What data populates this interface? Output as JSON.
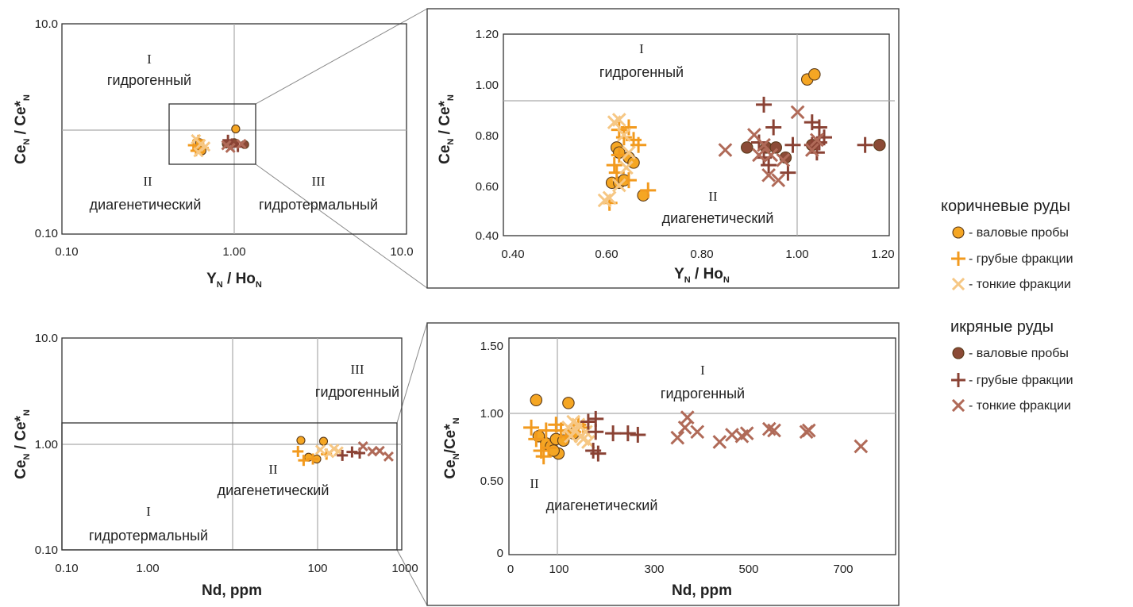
{
  "colors": {
    "brown_bulk": "#f5a623",
    "brown_coarse": "#f29a1e",
    "brown_fine": "#f6c784",
    "ikra_bulk": "#8b4a36",
    "ikra_coarse": "#8a4234",
    "ikra_fine": "#b06a58"
  },
  "legend": {
    "group1": "коричневые руды",
    "group2": "икряные руды",
    "items1": [
      "- валовые пробы",
      "- грубые фракции",
      "- тонкие фракции"
    ],
    "items2": [
      "- валовые пробы",
      "- грубые фракции",
      "- тонкие фракции"
    ]
  },
  "chart_data": [
    {
      "type": "scatter",
      "log_x": true,
      "log_y": true,
      "xlim": [
        0.1,
        10
      ],
      "ylim": [
        0.1,
        10
      ],
      "xticks": [
        "0.10",
        "1.00",
        "10.0"
      ],
      "yticks": [
        "0.10",
        "10.0"
      ],
      "xlabel": "YN / HoN",
      "ylabel": "CeN / Ce*N",
      "divider_x": 1.0,
      "divider_y": 0.93,
      "zoom_box": {
        "x": [
          0.42,
          1.35
        ],
        "y": [
          0.47,
          1.4
        ]
      },
      "zones": [
        {
          "numeral": "I",
          "label": "гидрогенный"
        },
        {
          "numeral": "II",
          "label": "диагенетический"
        },
        {
          "numeral": "III",
          "label": "гидротермальный"
        }
      ],
      "series": [
        {
          "kind": "brown_bulk",
          "points": [
            [
              0.63,
              0.74
            ],
            [
              0.64,
              0.67
            ],
            [
              0.65,
              0.62
            ],
            [
              1.02,
              1.0
            ]
          ]
        },
        {
          "kind": "brown_coarse",
          "points": [
            [
              0.58,
              0.7
            ],
            [
              0.62,
              0.78
            ],
            [
              0.66,
              0.66
            ],
            [
              0.6,
              0.62
            ]
          ]
        },
        {
          "kind": "brown_fine",
          "points": [
            [
              0.6,
              0.8
            ],
            [
              0.64,
              0.72
            ],
            [
              0.68,
              0.68
            ],
            [
              0.62,
              0.6
            ]
          ]
        },
        {
          "kind": "ikra_bulk",
          "points": [
            [
              0.9,
              0.72
            ],
            [
              1.0,
              0.74
            ],
            [
              1.15,
              0.71
            ]
          ]
        },
        {
          "kind": "ikra_coarse",
          "points": [
            [
              0.92,
              0.78
            ],
            [
              0.97,
              0.72
            ],
            [
              1.05,
              0.68
            ]
          ]
        },
        {
          "kind": "ikra_fine",
          "points": [
            [
              0.9,
              0.7
            ],
            [
              0.95,
              0.66
            ],
            [
              1.1,
              0.72
            ]
          ]
        }
      ]
    },
    {
      "type": "scatter",
      "xlim": [
        0.4,
        1.2
      ],
      "ylim": [
        0.4,
        1.2
      ],
      "xticks": [
        "0.40",
        "0.60",
        "0.80",
        "1.00",
        "1.20"
      ],
      "yticks": [
        "0.40",
        "0.60",
        "0.80",
        "1.00",
        "1.20"
      ],
      "xlabel": "YN / HoN",
      "ylabel": "CeN / Ce*N",
      "divider_x": 1.0,
      "divider_y": 0.93,
      "zones": [
        {
          "numeral": "I",
          "label": "гидрогенный"
        },
        {
          "numeral": "II",
          "label": "диагенетический"
        }
      ],
      "series": [
        {
          "kind": "brown_bulk",
          "points": [
            [
              0.635,
              0.75
            ],
            [
              0.625,
              0.61
            ],
            [
              0.64,
              0.61
            ],
            [
              0.65,
              0.62
            ],
            [
              0.66,
              0.71
            ],
            [
              0.67,
              0.69
            ],
            [
              0.69,
              0.56
            ],
            [
              0.64,
              0.73
            ],
            [
              1.03,
              1.02
            ],
            [
              1.045,
              1.04
            ]
          ]
        },
        {
          "kind": "brown_coarse",
          "points": [
            [
              0.63,
              0.68
            ],
            [
              0.64,
              0.72
            ],
            [
              0.65,
              0.79
            ],
            [
              0.66,
              0.83
            ],
            [
              0.67,
              0.78
            ],
            [
              0.68,
              0.76
            ],
            [
              0.66,
              0.62
            ],
            [
              0.7,
              0.58
            ],
            [
              0.62,
              0.53
            ],
            [
              0.635,
              0.65
            ],
            [
              0.64,
              0.82
            ]
          ]
        },
        {
          "kind": "brown_fine",
          "points": [
            [
              0.63,
              0.85
            ],
            [
              0.64,
              0.86
            ],
            [
              0.65,
              0.8
            ],
            [
              0.66,
              0.73
            ],
            [
              0.62,
              0.55
            ],
            [
              0.61,
              0.54
            ],
            [
              0.64,
              0.6
            ],
            [
              0.655,
              0.67
            ]
          ]
        },
        {
          "kind": "ikra_bulk",
          "points": [
            [
              0.905,
              0.75
            ],
            [
              0.945,
              0.75
            ],
            [
              0.965,
              0.75
            ],
            [
              0.985,
              0.71
            ],
            [
              1.04,
              0.76
            ],
            [
              1.18,
              0.76
            ]
          ]
        },
        {
          "kind": "ikra_coarse",
          "points": [
            [
              0.94,
              0.92
            ],
            [
              0.96,
              0.83
            ],
            [
              0.93,
              0.77
            ],
            [
              0.95,
              0.68
            ],
            [
              0.99,
              0.65
            ],
            [
              1.0,
              0.76
            ],
            [
              1.04,
              0.85
            ],
            [
              1.055,
              0.83
            ],
            [
              1.065,
              0.79
            ],
            [
              1.05,
              0.73
            ],
            [
              1.04,
              0.76
            ],
            [
              1.15,
              0.76
            ],
            [
              0.94,
              0.71
            ],
            [
              1.055,
              0.77
            ]
          ]
        },
        {
          "kind": "ikra_fine",
          "points": [
            [
              0.86,
              0.74
            ],
            [
              0.92,
              0.8
            ],
            [
              0.94,
              0.76
            ],
            [
              0.93,
              0.72
            ],
            [
              0.955,
              0.72
            ],
            [
              0.97,
              0.62
            ],
            [
              0.98,
              0.7
            ],
            [
              1.01,
              0.89
            ],
            [
              1.04,
              0.74
            ],
            [
              1.05,
              0.78
            ],
            [
              0.95,
              0.64
            ]
          ]
        }
      ]
    },
    {
      "type": "scatter",
      "log_x": true,
      "log_y": true,
      "xlim": [
        0.1,
        1000
      ],
      "ylim": [
        0.1,
        10
      ],
      "xticks": [
        "0.10",
        "1.00",
        "100",
        "1000"
      ],
      "yticks": [
        "0.10",
        "1.00",
        "10.0"
      ],
      "xlabel": "Nd, ppm",
      "ylabel": "CeN / Ce*N",
      "divider_x": [
        10,
        100
      ],
      "divider_y": 1.0,
      "zoom_box": {
        "x": [
          0.1,
          800
        ],
        "y": [
          0.1,
          1.6
        ]
      },
      "zones": [
        {
          "numeral": "III",
          "label": "гидрогенный"
        },
        {
          "numeral": "II",
          "label": "диагенетический"
        },
        {
          "numeral": "I",
          "label": "гидротермальный"
        }
      ],
      "series": [
        {
          "kind": "brown_bulk",
          "points": [
            [
              65,
              1.08
            ],
            [
              120,
              1.06
            ],
            [
              80,
              0.75
            ],
            [
              100,
              0.72
            ]
          ]
        },
        {
          "kind": "brown_coarse",
          "points": [
            [
              60,
              0.85
            ],
            [
              90,
              0.72
            ],
            [
              70,
              0.7
            ],
            [
              130,
              0.8
            ]
          ]
        },
        {
          "kind": "brown_fine",
          "points": [
            [
              110,
              0.88
            ],
            [
              140,
              0.82
            ],
            [
              160,
              0.9
            ],
            [
              180,
              0.85
            ]
          ]
        },
        {
          "kind": "ikra_coarse",
          "points": [
            [
              200,
              0.78
            ],
            [
              260,
              0.84
            ],
            [
              320,
              0.82
            ]
          ]
        },
        {
          "kind": "ikra_fine",
          "points": [
            [
              350,
              0.95
            ],
            [
              450,
              0.85
            ],
            [
              550,
              0.86
            ],
            [
              700,
              0.76
            ]
          ]
        }
      ]
    },
    {
      "type": "scatter",
      "xlim": [
        0,
        780
      ],
      "ylim": [
        0,
        1.5
      ],
      "xticks": [
        "0",
        "100",
        "300",
        "500",
        "700"
      ],
      "yticks": [
        "0",
        "0.50",
        "1.00",
        "1.50"
      ],
      "xlabel": "Nd, ppm",
      "ylabel": "CeN/Ce*N",
      "divider_x": 100,
      "divider_y": 1.0,
      "zones": [
        {
          "numeral": "I",
          "label": "гидрогенный"
        },
        {
          "numeral": "II",
          "label": "диагенетический"
        }
      ],
      "series": [
        {
          "kind": "brown_bulk",
          "points": [
            [
              55,
              1.07
            ],
            [
              120,
              1.05
            ],
            [
              60,
              0.82
            ],
            [
              75,
              0.77
            ],
            [
              85,
              0.75
            ],
            [
              95,
              0.8
            ],
            [
              100,
              0.7
            ],
            [
              110,
              0.79
            ],
            [
              130,
              0.84
            ],
            [
              90,
              0.72
            ]
          ]
        },
        {
          "kind": "brown_coarse",
          "points": [
            [
              45,
              0.88
            ],
            [
              55,
              0.8
            ],
            [
              65,
              0.72
            ],
            [
              70,
              0.68
            ],
            [
              80,
              0.74
            ],
            [
              95,
              0.9
            ],
            [
              105,
              0.86
            ],
            [
              115,
              0.82
            ],
            [
              130,
              0.85
            ],
            [
              140,
              0.9
            ],
            [
              150,
              0.88
            ],
            [
              75,
              0.86
            ]
          ]
        },
        {
          "kind": "brown_fine",
          "points": [
            [
              120,
              0.88
            ],
            [
              130,
              0.92
            ],
            [
              135,
              0.86
            ],
            [
              145,
              0.82
            ],
            [
              150,
              0.8
            ],
            [
              155,
              0.85
            ],
            [
              160,
              0.78
            ],
            [
              140,
              0.9
            ],
            [
              125,
              0.82
            ]
          ]
        },
        {
          "kind": "ikra_coarse",
          "points": [
            [
              160,
              0.92
            ],
            [
              175,
              0.94
            ],
            [
              170,
              0.72
            ],
            [
              180,
              0.7
            ],
            [
              210,
              0.84
            ],
            [
              240,
              0.84
            ],
            [
              260,
              0.83
            ],
            [
              175,
              0.85
            ]
          ]
        },
        {
          "kind": "ikra_fine",
          "points": [
            [
              340,
              0.81
            ],
            [
              360,
              0.95
            ],
            [
              355,
              0.88
            ],
            [
              380,
              0.85
            ],
            [
              425,
              0.78
            ],
            [
              450,
              0.83
            ],
            [
              470,
              0.82
            ],
            [
              480,
              0.84
            ],
            [
              525,
              0.87
            ],
            [
              535,
              0.86
            ],
            [
              600,
              0.85
            ],
            [
              605,
              0.86
            ],
            [
              710,
              0.75
            ]
          ]
        }
      ]
    }
  ]
}
